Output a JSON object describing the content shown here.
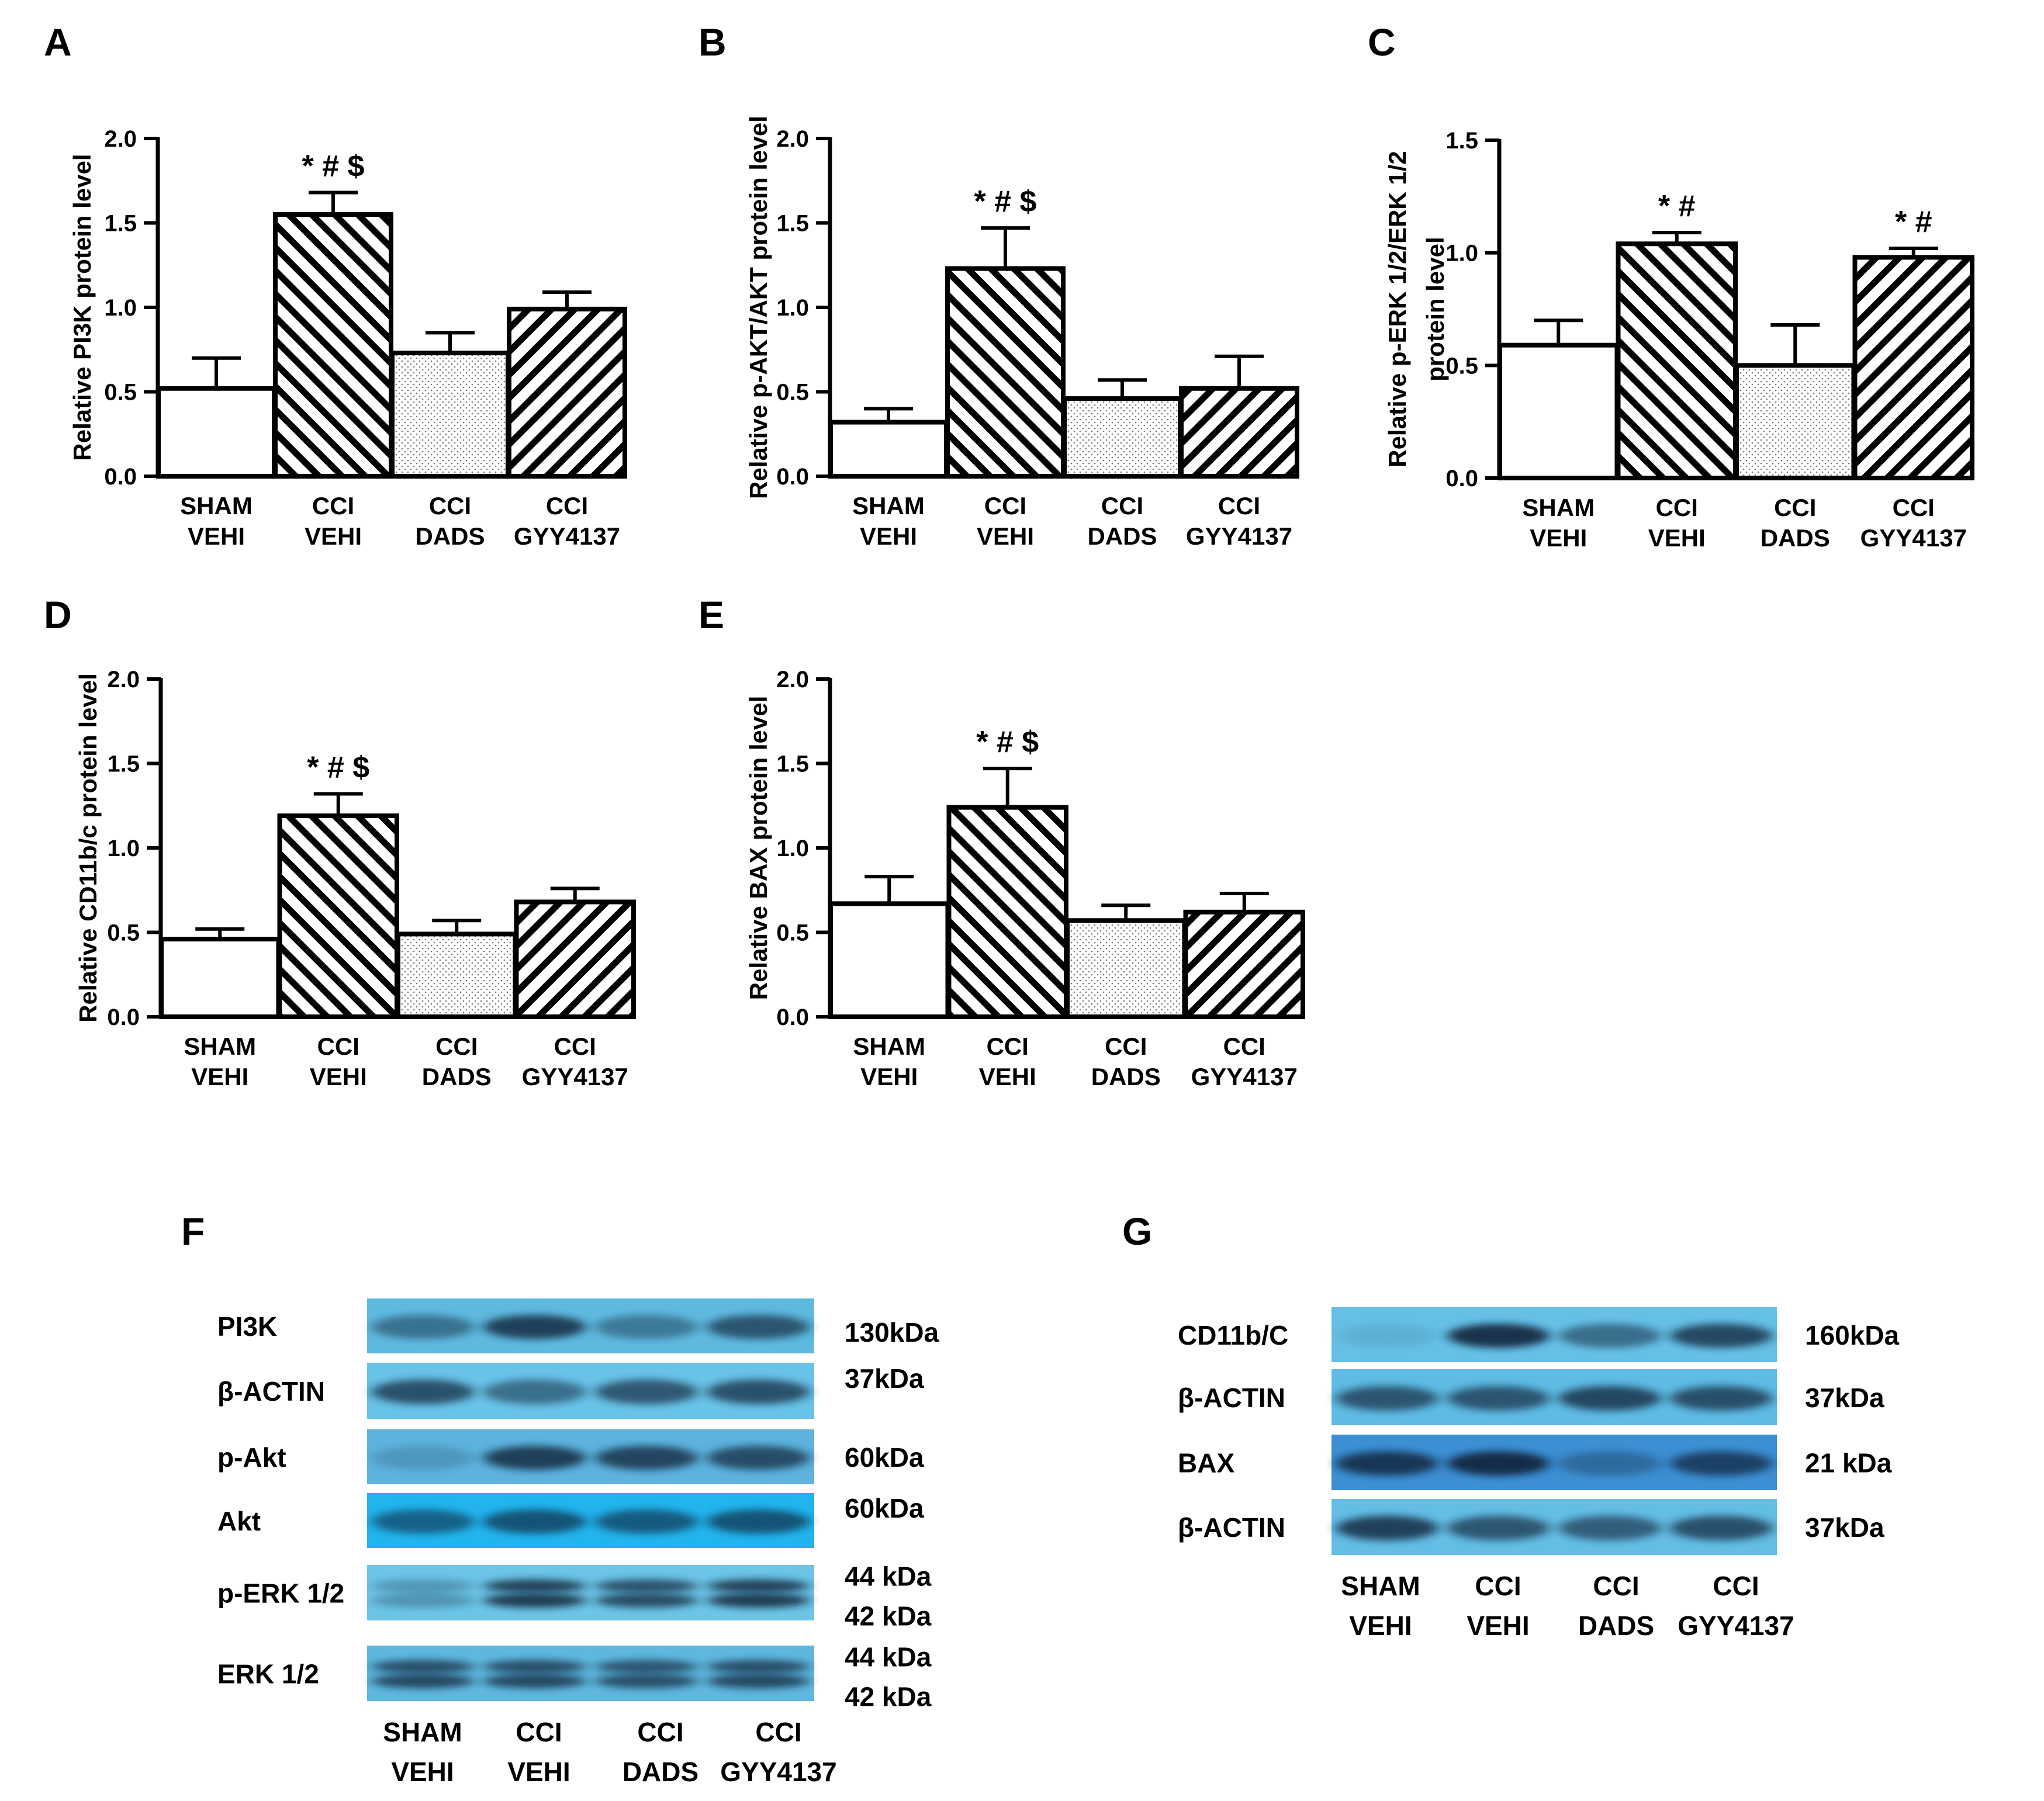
{
  "chart_data": [
    {
      "panel": "A",
      "type": "bar",
      "ylabel": [
        "Relative PI3K protein level"
      ],
      "ylim": [
        0,
        2.0
      ],
      "yticks": [
        "0.0",
        "0.5",
        "1.0",
        "1.5",
        "2.0"
      ],
      "categories": [
        [
          "SHAM",
          "VEHI"
        ],
        [
          "CCI",
          "VEHI"
        ],
        [
          "CCI",
          "DADS"
        ],
        [
          "CCI",
          "GYY4137"
        ]
      ],
      "values": [
        0.52,
        1.55,
        0.73,
        0.99
      ],
      "errors": [
        0.18,
        0.13,
        0.12,
        0.1
      ],
      "annotations": [
        "",
        "* # $",
        "",
        ""
      ]
    },
    {
      "panel": "B",
      "type": "bar",
      "ylabel": [
        "Relative p-AKT/AKT protein level"
      ],
      "ylim": [
        0,
        2.0
      ],
      "yticks": [
        "0.0",
        "0.5",
        "1.0",
        "1.5",
        "2.0"
      ],
      "categories": [
        [
          "SHAM",
          "VEHI"
        ],
        [
          "CCI",
          "VEHI"
        ],
        [
          "CCI",
          "DADS"
        ],
        [
          "CCI",
          "GYY4137"
        ]
      ],
      "values": [
        0.32,
        1.23,
        0.46,
        0.52
      ],
      "errors": [
        0.08,
        0.24,
        0.11,
        0.19
      ],
      "annotations": [
        "",
        "* # $",
        "",
        ""
      ]
    },
    {
      "panel": "C",
      "type": "bar",
      "ylabel": [
        "Relative p-ERK 1/2/ERK 1/2",
        "protein level"
      ],
      "ylim": [
        0,
        1.5
      ],
      "yticks": [
        "0.0",
        "0.5",
        "1.0",
        "1.5"
      ],
      "categories": [
        [
          "SHAM",
          "VEHI"
        ],
        [
          "CCI",
          "VEHI"
        ],
        [
          "CCI",
          "DADS"
        ],
        [
          "CCI",
          "GYY4137"
        ]
      ],
      "values": [
        0.59,
        1.04,
        0.5,
        0.98
      ],
      "errors": [
        0.11,
        0.05,
        0.18,
        0.04
      ],
      "annotations": [
        "",
        "* #",
        "",
        "* #"
      ]
    },
    {
      "panel": "D",
      "type": "bar",
      "ylabel": [
        "Relative CD11b/c protein level"
      ],
      "ylim": [
        0,
        2.0
      ],
      "yticks": [
        "0.0",
        "0.5",
        "1.0",
        "1.5",
        "2.0"
      ],
      "categories": [
        [
          "SHAM",
          "VEHI"
        ],
        [
          "CCI",
          "VEHI"
        ],
        [
          "CCI",
          "DADS"
        ],
        [
          "CCI",
          "GYY4137"
        ]
      ],
      "values": [
        0.46,
        1.19,
        0.49,
        0.68
      ],
      "errors": [
        0.06,
        0.13,
        0.08,
        0.08
      ],
      "annotations": [
        "",
        "* # $",
        "",
        ""
      ]
    },
    {
      "panel": "E",
      "type": "bar",
      "ylabel": [
        "Relative BAX protein level"
      ],
      "ylim": [
        0,
        2.0
      ],
      "yticks": [
        "0.0",
        "0.5",
        "1.0",
        "1.5",
        "2.0"
      ],
      "categories": [
        [
          "SHAM",
          "VEHI"
        ],
        [
          "CCI",
          "VEHI"
        ],
        [
          "CCI",
          "DADS"
        ],
        [
          "CCI",
          "GYY4137"
        ]
      ],
      "values": [
        0.67,
        1.24,
        0.57,
        0.62
      ],
      "errors": [
        0.16,
        0.23,
        0.09,
        0.11
      ],
      "annotations": [
        "",
        "* # $",
        "",
        ""
      ]
    }
  ],
  "blots": {
    "F": {
      "label": "F",
      "rows": [
        {
          "name": "PI3K",
          "kda": [
            "130kDa"
          ],
          "bands": [
            0.5,
            0.85,
            0.45,
            0.7
          ],
          "color": "#5fb9df"
        },
        {
          "name": "β-ACTIN",
          "kda": [
            "37kDa"
          ],
          "bands": [
            0.75,
            0.55,
            0.7,
            0.75
          ],
          "color": "#69c2e7"
        },
        {
          "name": "p-Akt",
          "kda": [
            "60kDa"
          ],
          "bands": [
            0.2,
            0.85,
            0.8,
            0.75
          ],
          "color": "#5db3dd"
        },
        {
          "name": "Akt",
          "kda": [
            "60kDa"
          ],
          "bands": [
            0.6,
            0.7,
            0.65,
            0.7
          ],
          "color": "#22b4ee"
        },
        {
          "name": "p-ERK 1/2",
          "kda": [
            "44 kDa",
            "42 kDa"
          ],
          "bands": [
            0.3,
            0.85,
            0.75,
            0.85
          ],
          "color": "#6cc4e6"
        },
        {
          "name": "ERK 1/2",
          "kda": [
            "44 kDa",
            "42 kDa"
          ],
          "bands": [
            0.75,
            0.75,
            0.7,
            0.75
          ],
          "color": "#5fb7de"
        }
      ],
      "lanes": [
        [
          "SHAM",
          "VEHI"
        ],
        [
          "CCI",
          "VEHI"
        ],
        [
          "CCI",
          "DADS"
        ],
        [
          "CCI",
          "GYY4137"
        ]
      ]
    },
    "G": {
      "label": "G",
      "rows": [
        {
          "name": "CD11b/C",
          "kda": [
            "160kDa"
          ],
          "bands": [
            0.1,
            0.95,
            0.55,
            0.8
          ],
          "color": "#66c0e6"
        },
        {
          "name": "β-ACTIN",
          "kda": [
            "37kDa"
          ],
          "bands": [
            0.7,
            0.7,
            0.8,
            0.75
          ],
          "color": "#5fbbe3"
        },
        {
          "name": "BAX",
          "kda": [
            "21 kDa"
          ],
          "bands": [
            0.85,
            0.95,
            0.35,
            0.75
          ],
          "color": "#3d8fd3"
        },
        {
          "name": "β-ACTIN",
          "kda": [
            "37kDa"
          ],
          "bands": [
            0.85,
            0.7,
            0.65,
            0.75
          ],
          "color": "#64bde4"
        }
      ],
      "lanes": [
        [
          "SHAM",
          "VEHI"
        ],
        [
          "CCI",
          "VEHI"
        ],
        [
          "CCI",
          "DADS"
        ],
        [
          "CCI",
          "GYY4137"
        ]
      ]
    }
  },
  "colors": {
    "axis": "#000000",
    "band": "#0a1f30"
  }
}
